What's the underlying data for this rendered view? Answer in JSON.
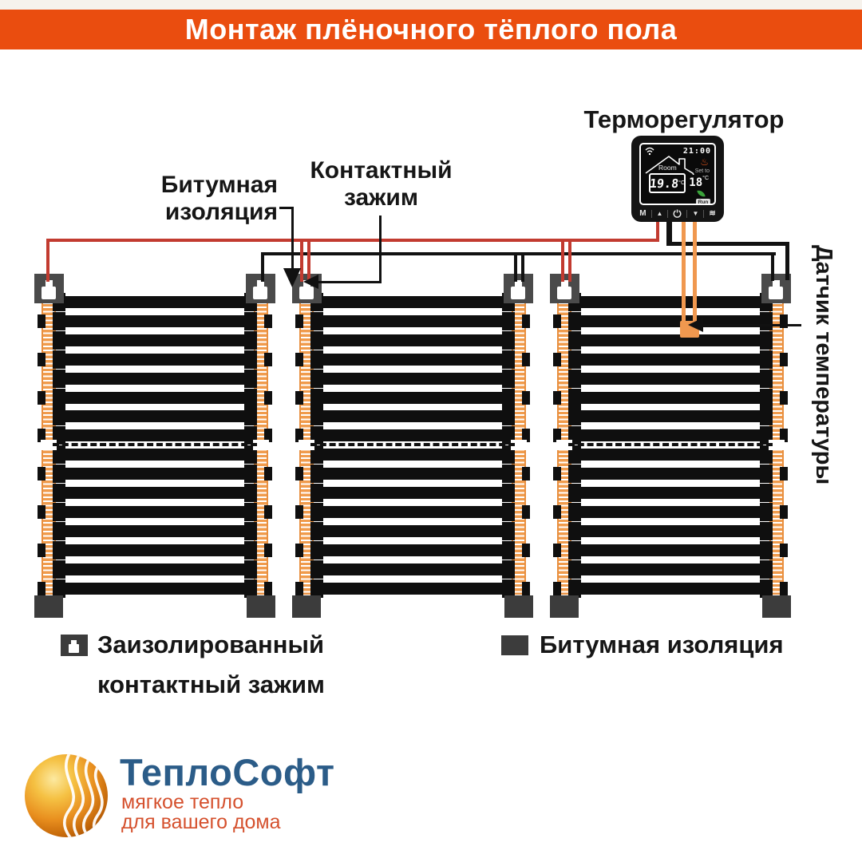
{
  "header": {
    "title": "Монтаж плёночного тёплого пола"
  },
  "annotations": {
    "thermostat": "Терморегулятор",
    "bitumen_line1": "Битумная",
    "bitumen_line2": "изоляция",
    "clamp_line1": "Контактный",
    "clamp_line2": "зажим",
    "sensor_label": "Датчик температуры"
  },
  "thermostat": {
    "time": "21:00",
    "room_label": "Room",
    "room_temp": "19.8",
    "room_unit": "°C",
    "set_label": "Set to",
    "set_temp": "18",
    "set_unit": "°C",
    "run_badge": "Run",
    "btn_mode": "M",
    "btn_up": "▲",
    "btn_down": "▼"
  },
  "legend": {
    "item1_line1": "Заизолированный",
    "item1_line2": "контактный зажим",
    "item2": "Битумная изоляция"
  },
  "logo": {
    "name": "ТеплоСофт",
    "tagline1": "мягкое тепло",
    "tagline2": "для вашего дома"
  },
  "mats": {
    "x_positions": [
      52,
      375,
      698
    ],
    "bar_count": 16,
    "bars_above_cut": 8
  },
  "colors": {
    "header-bg": "#EA4D0F",
    "wire-red": "#C23B30",
    "wire-black": "#121212",
    "strip-orange": "#F09B4C",
    "strip-border": "#E88F3F",
    "clamp-gray": "#4A4A4A",
    "block-gray": "#3C3C3C",
    "sensor-orange": "#F0984F",
    "logo-blue": "#2B5C88",
    "logo-orange": "#D5512E"
  }
}
